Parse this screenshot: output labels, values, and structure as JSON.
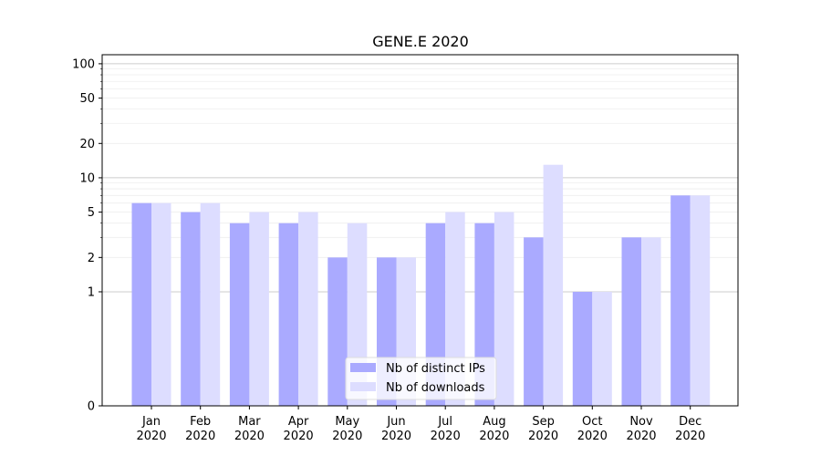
{
  "chart_data": {
    "type": "bar",
    "title": "GENE.E 2020",
    "xlabel": "",
    "ylabel": "",
    "yscale": "symlog",
    "ylim": [
      0,
      120
    ],
    "y_ticks": [
      0,
      1,
      2,
      5,
      10,
      20,
      50,
      100
    ],
    "y_tick_labels": [
      "0",
      "1",
      "2",
      "5",
      "10",
      "20",
      "50",
      "100"
    ],
    "grid": true,
    "legend_position": "lower-center",
    "categories": [
      {
        "month": "Jan",
        "year": "2020"
      },
      {
        "month": "Feb",
        "year": "2020"
      },
      {
        "month": "Mar",
        "year": "2020"
      },
      {
        "month": "Apr",
        "year": "2020"
      },
      {
        "month": "May",
        "year": "2020"
      },
      {
        "month": "Jun",
        "year": "2020"
      },
      {
        "month": "Jul",
        "year": "2020"
      },
      {
        "month": "Aug",
        "year": "2020"
      },
      {
        "month": "Sep",
        "year": "2020"
      },
      {
        "month": "Oct",
        "year": "2020"
      },
      {
        "month": "Nov",
        "year": "2020"
      },
      {
        "month": "Dec",
        "year": "2020"
      }
    ],
    "series": [
      {
        "name": "Nb of distinct IPs",
        "color": "#aaaaff",
        "values": [
          6,
          5,
          4,
          4,
          2,
          2,
          4,
          4,
          3,
          1,
          3,
          7
        ]
      },
      {
        "name": "Nb of downloads",
        "color": "#ddddff",
        "values": [
          6,
          6,
          5,
          5,
          4,
          2,
          5,
          5,
          13,
          1,
          3,
          7
        ]
      }
    ]
  }
}
